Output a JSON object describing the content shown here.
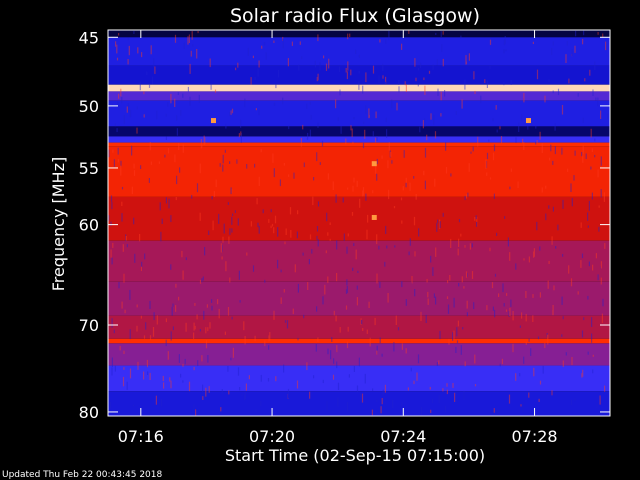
{
  "chart_data": {
    "type": "heatmap",
    "title": "Solar radio Flux (Glasgow)",
    "xlabel": "Start Time (02-Sep-15 07:15:00)",
    "ylabel": "Frequency [MHz]",
    "x_ticks": [
      "07:16",
      "07:20",
      "07:24",
      "07:28"
    ],
    "x_tick_minutes": [
      1,
      5,
      9,
      13
    ],
    "x_range_minutes": [
      0,
      15.3
    ],
    "y_ticks": [
      45,
      50,
      55,
      60,
      70,
      80
    ],
    "y_scale": "log",
    "y_range_mhz": [
      44.5,
      80.5
    ],
    "colormap": [
      "#000000",
      "#0a0abf",
      "#3030ff",
      "#8020a0",
      "#cc1010",
      "#ff2a00",
      "#ff9030",
      "#ffffff"
    ],
    "frequency_bands_mhz": [
      {
        "from": 44.5,
        "to": 45.0,
        "level": 0.05
      },
      {
        "from": 45.0,
        "to": 47.0,
        "level": 0.22
      },
      {
        "from": 47.0,
        "to": 48.4,
        "level": 0.18
      },
      {
        "from": 48.4,
        "to": 48.9,
        "level": 0.95
      },
      {
        "from": 48.9,
        "to": 49.6,
        "level": 0.35
      },
      {
        "from": 49.6,
        "to": 51.6,
        "level": 0.22
      },
      {
        "from": 51.6,
        "to": 52.4,
        "level": 0.08
      },
      {
        "from": 52.4,
        "to": 52.9,
        "level": 0.3
      },
      {
        "from": 52.9,
        "to": 53.2,
        "level": 0.72
      },
      {
        "from": 53.2,
        "to": 57.5,
        "level": 0.68
      },
      {
        "from": 57.5,
        "to": 61.5,
        "level": 0.58
      },
      {
        "from": 61.5,
        "to": 65.5,
        "level": 0.5
      },
      {
        "from": 65.5,
        "to": 69.0,
        "level": 0.48
      },
      {
        "from": 69.0,
        "to": 71.5,
        "level": 0.52
      },
      {
        "from": 71.5,
        "to": 72.0,
        "level": 0.72
      },
      {
        "from": 72.0,
        "to": 74.5,
        "level": 0.44
      },
      {
        "from": 74.5,
        "to": 77.5,
        "level": 0.3
      },
      {
        "from": 77.5,
        "to": 80.5,
        "level": 0.2
      }
    ],
    "hot_spots": [
      {
        "minute": 3.2,
        "mhz": 51.1
      },
      {
        "minute": 12.8,
        "mhz": 51.1
      },
      {
        "minute": 8.1,
        "mhz": 54.6
      },
      {
        "minute": 8.1,
        "mhz": 59.3
      }
    ],
    "footer": "Updated Thu Feb 22 00:43:45 2018"
  }
}
